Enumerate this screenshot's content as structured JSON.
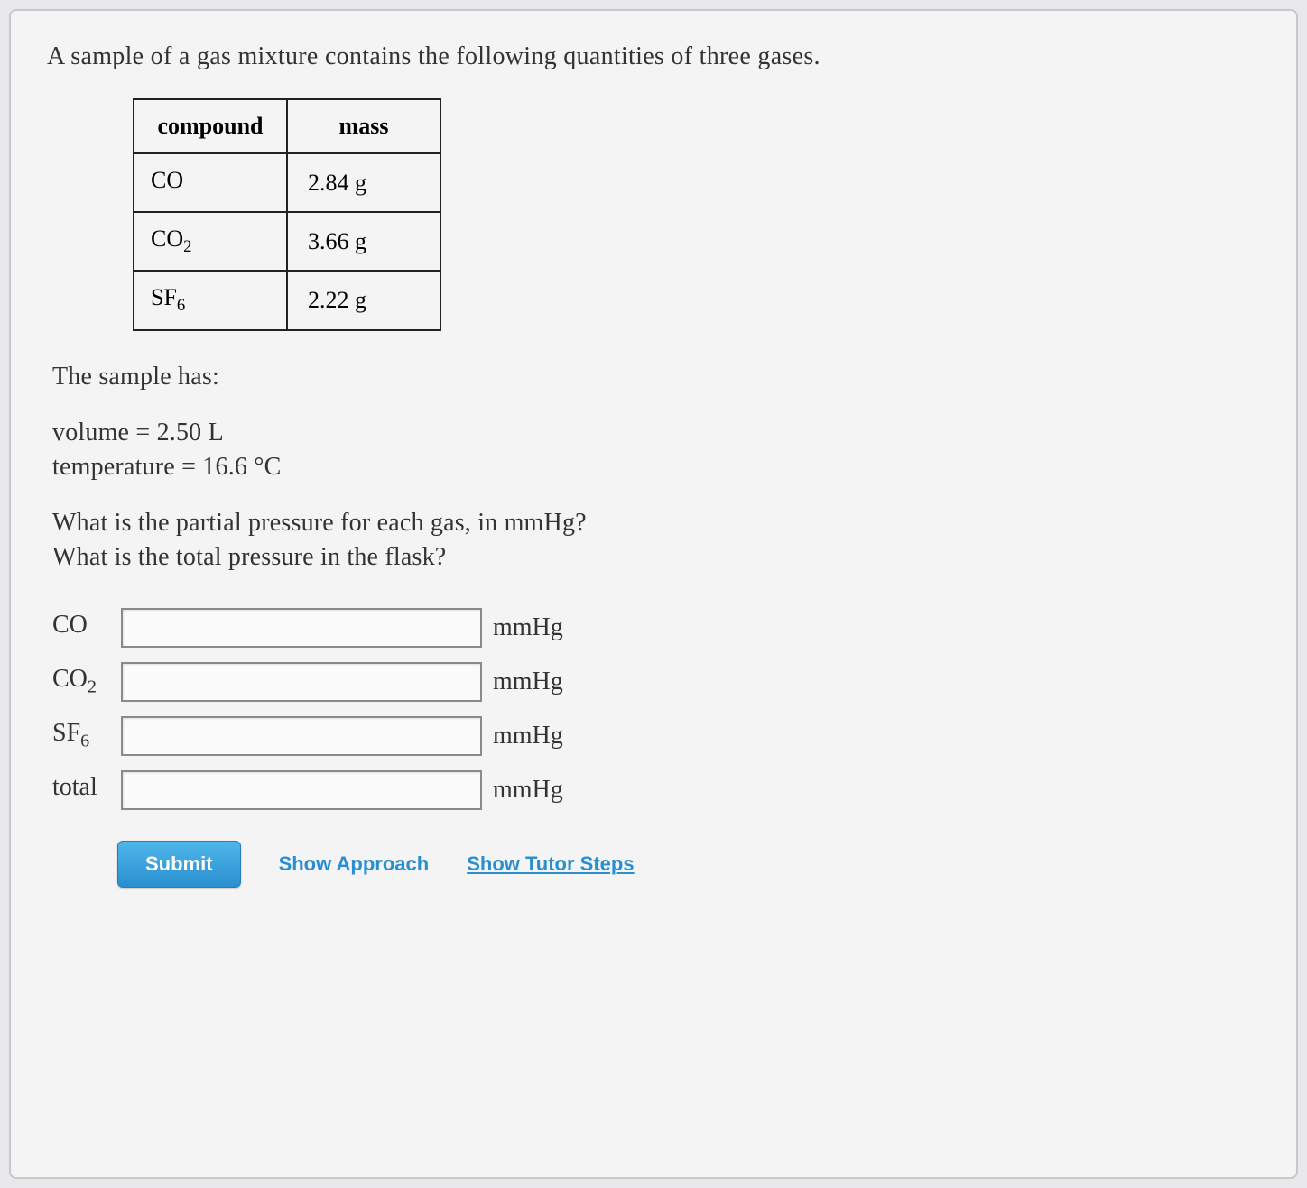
{
  "intro": "A sample of a gas mixture contains the following quantities of three gases.",
  "table": {
    "header_compound": "compound",
    "header_mass": "mass",
    "rows": [
      {
        "compound_base": "CO",
        "compound_sub": "",
        "mass": "2.84 g"
      },
      {
        "compound_base": "CO",
        "compound_sub": "2",
        "mass": "3.66 g"
      },
      {
        "compound_base": "SF",
        "compound_sub": "6",
        "mass": "2.22 g"
      }
    ]
  },
  "sample_has": "The sample has:",
  "volume_line": "volume = 2.50 L",
  "temperature_line": "temperature = 16.6 °C",
  "q1": "What is the partial pressure for each gas, in mmHg?",
  "q2": "What is the total pressure in the flask?",
  "answers": [
    {
      "label_base": "CO",
      "label_sub": "",
      "unit": "mmHg",
      "name": "co-input"
    },
    {
      "label_base": "CO",
      "label_sub": "2",
      "unit": "mmHg",
      "name": "co2-input"
    },
    {
      "label_base": "SF",
      "label_sub": "6",
      "unit": "mmHg",
      "name": "sf6-input"
    },
    {
      "label_base": "total",
      "label_sub": "",
      "unit": "mmHg",
      "name": "total-input"
    }
  ],
  "buttons": {
    "submit": "Submit",
    "approach": "Show Approach",
    "tutor": "Show Tutor Steps"
  },
  "colors": {
    "panel_bg": "#f4f4f5",
    "panel_border": "#c8c8cc",
    "text": "#333333",
    "table_border": "#222222",
    "input_border": "#8a8a8e",
    "submit_top": "#4fb6ea",
    "submit_bottom": "#2a8fd0",
    "link": "#2a8fd0"
  }
}
